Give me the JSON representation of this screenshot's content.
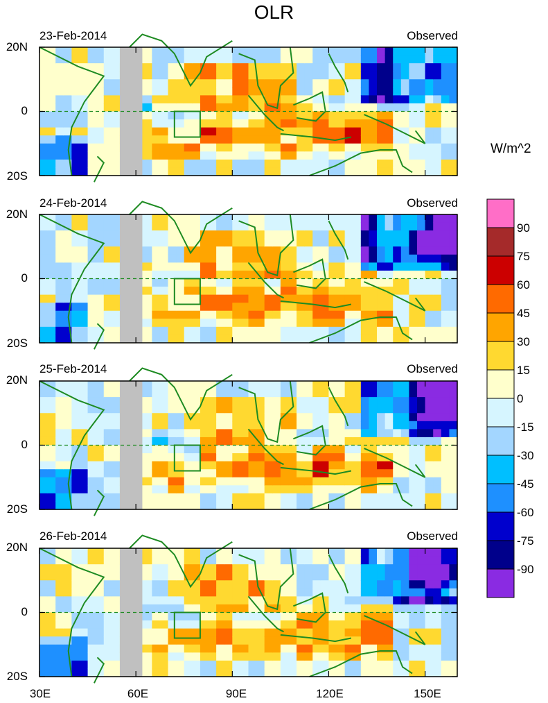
{
  "title": "OLR",
  "units": "W/m^2",
  "panels": [
    {
      "date": "23-Feb-2014",
      "source": "Observed"
    },
    {
      "date": "24-Feb-2014",
      "source": "Observed"
    },
    {
      "date": "25-Feb-2014",
      "source": "Observed"
    },
    {
      "date": "26-Feb-2014",
      "source": "Observed"
    }
  ],
  "lat_labels": [
    "20N",
    "0",
    "20S"
  ],
  "lon_labels": [
    "30E",
    "60E",
    "90E",
    "120E",
    "150E"
  ],
  "colorbar": {
    "labels": [
      "90",
      "75",
      "60",
      "45",
      "30",
      "15",
      "0",
      "-15",
      "-30",
      "-45",
      "-60",
      "-75",
      "-90"
    ],
    "colors": [
      "#ff6ec7",
      "#a52a2a",
      "#cc0000",
      "#ff6a00",
      "#ffa500",
      "#ffd930",
      "#ffffcc",
      "#d6f5ff",
      "#a3d6ff",
      "#00bfff",
      "#1e90ff",
      "#0000cd",
      "#00008b",
      "#8a2be2"
    ]
  }
}
